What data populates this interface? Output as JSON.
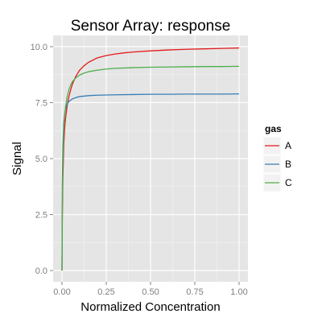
{
  "chart_data": {
    "type": "line",
    "title": "Sensor Array: response",
    "xlabel": "Normalized Concentration",
    "ylabel": "Signal",
    "xlim": [
      -0.05,
      1.05
    ],
    "ylim": [
      -0.5,
      10.5
    ],
    "x_ticks": [
      {
        "value": 0.0,
        "label": "0.00"
      },
      {
        "value": 0.25,
        "label": "0.25"
      },
      {
        "value": 0.5,
        "label": "0.50"
      },
      {
        "value": 0.75,
        "label": "0.75"
      },
      {
        "value": 1.0,
        "label": "1.00"
      }
    ],
    "y_ticks": [
      {
        "value": 0.0,
        "label": "0.0"
      },
      {
        "value": 2.5,
        "label": "2.5"
      },
      {
        "value": 5.0,
        "label": "5.0"
      },
      {
        "value": 7.5,
        "label": "7.5"
      },
      {
        "value": 10.0,
        "label": "10.0"
      }
    ],
    "grid": true,
    "legend": {
      "title": "gas",
      "placement": "right"
    },
    "series": [
      {
        "name": "A",
        "color": "#e41a1c",
        "x": [
          0,
          0.002,
          0.005,
          0.01,
          0.015,
          0.02,
          0.03,
          0.04,
          0.05,
          0.06,
          0.08,
          0.1,
          0.125,
          0.15,
          0.2,
          0.25,
          0.3,
          0.35,
          0.4,
          0.5,
          0.6,
          0.7,
          0.8,
          0.9,
          1.0
        ],
        "y": [
          0,
          2.3,
          4.1,
          5.6,
          6.35,
          6.8,
          7.4,
          7.8,
          8.1,
          8.35,
          8.7,
          8.95,
          9.15,
          9.3,
          9.5,
          9.6,
          9.67,
          9.72,
          9.76,
          9.81,
          9.85,
          9.88,
          9.9,
          9.92,
          9.94
        ]
      },
      {
        "name": "B",
        "color": "#377eb8",
        "x": [
          0,
          0.002,
          0.005,
          0.01,
          0.015,
          0.02,
          0.03,
          0.04,
          0.05,
          0.06,
          0.08,
          0.1,
          0.15,
          0.2,
          0.3,
          0.4,
          0.5,
          0.6,
          0.7,
          0.8,
          0.9,
          1.0
        ],
        "y": [
          0,
          3.9,
          5.6,
          6.6,
          7.0,
          7.2,
          7.45,
          7.55,
          7.62,
          7.67,
          7.73,
          7.77,
          7.81,
          7.83,
          7.85,
          7.86,
          7.87,
          7.87,
          7.88,
          7.88,
          7.88,
          7.89
        ]
      },
      {
        "name": "C",
        "color": "#4daf4a",
        "x": [
          0,
          0.002,
          0.005,
          0.01,
          0.015,
          0.02,
          0.03,
          0.04,
          0.05,
          0.06,
          0.08,
          0.1,
          0.125,
          0.15,
          0.2,
          0.25,
          0.3,
          0.4,
          0.5,
          0.6,
          0.7,
          0.8,
          0.9,
          1.0
        ],
        "y": [
          0,
          2.8,
          4.9,
          6.3,
          6.95,
          7.3,
          7.8,
          8.1,
          8.3,
          8.45,
          8.62,
          8.73,
          8.82,
          8.88,
          8.95,
          9.0,
          9.03,
          9.06,
          9.08,
          9.09,
          9.1,
          9.11,
          9.11,
          9.12
        ]
      }
    ]
  }
}
